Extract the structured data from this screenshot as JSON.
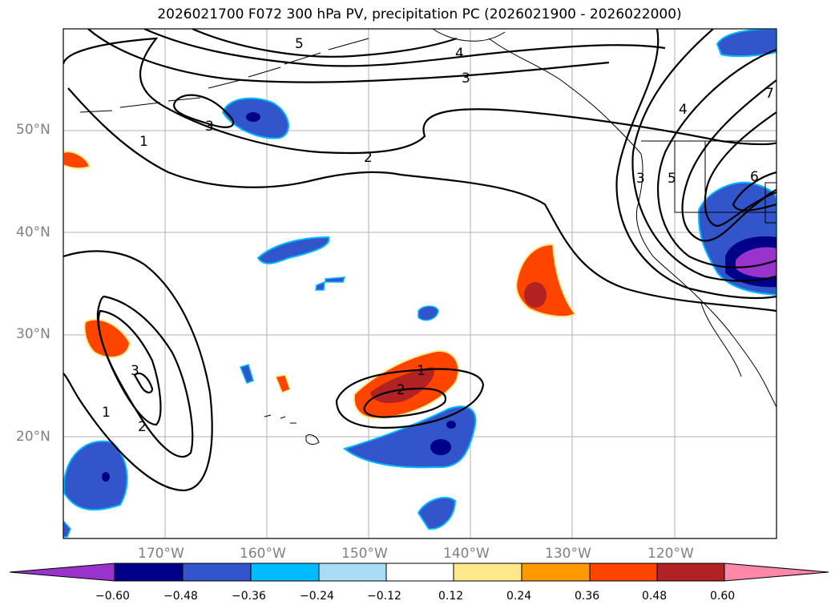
{
  "title": "2026021700 F072 300 hPa PV, precipitation PC (2026021900 - 2026022000)",
  "axes": {
    "lat_labels": [
      "50°N",
      "40°N",
      "30°N",
      "20°N"
    ],
    "lon_labels": [
      "170°W",
      "160°W",
      "150°W",
      "140°W",
      "130°W",
      "120°W"
    ],
    "lat_range": [
      10,
      60
    ],
    "lon_range": [
      -180,
      -110
    ]
  },
  "contour_labels": [
    "5",
    "4",
    "3",
    "3",
    "2",
    "1",
    "4",
    "6",
    "7",
    "3",
    "5",
    "1",
    "2",
    "3",
    "1",
    "2"
  ],
  "colorbar": {
    "ticks": [
      "−0.60",
      "−0.48",
      "−0.36",
      "−0.24",
      "−0.12",
      "0.12",
      "0.24",
      "0.36",
      "0.48",
      "0.60"
    ],
    "colors": [
      "#9933cc",
      "#000088",
      "#3355cc",
      "#00bbff",
      "#aaddf5",
      "#ffffff",
      "#ffe88a",
      "#ff9900",
      "#ff4400",
      "#b22222",
      "#ff88aa"
    ]
  }
}
